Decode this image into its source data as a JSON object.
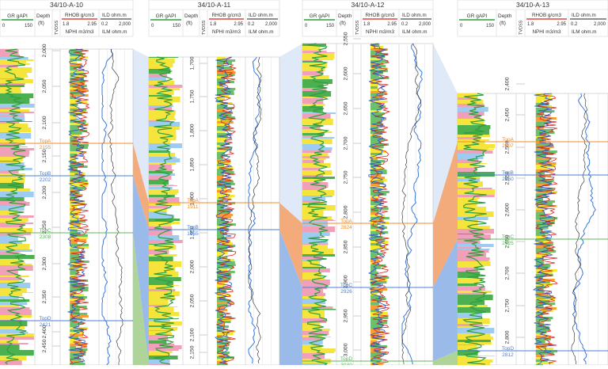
{
  "colors": {
    "gr": "#2e9e3e",
    "rhob": "#d9201a",
    "nphi": "#2756c8",
    "ild": "#202020",
    "ilm": "#3a78d8",
    "fill_sand": "#f4e61c",
    "fill_shale": "#5cb85c",
    "fill_porous": "#f7931e",
    "lith_yellow": "#f5e43c",
    "lith_pink": "#f0a0b8",
    "lith_blue": "#9ecbf0",
    "lith_green": "#4caf50",
    "top_orange": "#f28c28",
    "top_blue": "#4a7fd4",
    "top_green": "#5cb85c"
  },
  "header_labels": {
    "gr": "GR gAPI",
    "depth": "Depth",
    "depth_unit": "(ft)",
    "tvds": "TVDSS",
    "rhob": "RHOB g/cm3",
    "nphi": "NPHI m3/m3",
    "ild": "ILD ohm.m",
    "ilm": "ILM ohm.m",
    "gr_min": "0",
    "gr_max": "150",
    "rhob_min": "1.8",
    "rhob_max": "2.95",
    "res_min": "0.2",
    "res_max": "2,000"
  },
  "wells": [
    {
      "name": "34/10-A-10",
      "depth_ticks": [
        "2,000",
        "2,050",
        "2,100",
        "2,150",
        "2,200",
        "2,250",
        "2,300",
        "2,350",
        "2,400",
        "2,450"
      ],
      "tops": [
        {
          "label": "TopA",
          "value": "2155",
          "kind": "orange"
        },
        {
          "label": "TopB",
          "value": "2202",
          "kind": "blue"
        },
        {
          "label": "TopC",
          "value": "2308",
          "kind": "green"
        },
        {
          "label": "TopD",
          "value": "2421",
          "kind": "blue"
        }
      ]
    },
    {
      "name": "34/10-A-11",
      "depth_ticks": [
        "1,700",
        "1,750",
        "1,800",
        "1,850",
        "1,900",
        "1,950",
        "2,000",
        "2,050",
        "2,100",
        "2,150"
      ],
      "tops": [
        {
          "label": "TopA",
          "value": "1911",
          "kind": "orange"
        },
        {
          "label": "TopB",
          "value": "1955",
          "kind": "blue"
        }
      ]
    },
    {
      "name": "34/10-A-12",
      "depth_ticks": [
        "2,550",
        "2,600",
        "2,650",
        "2,700",
        "2,750",
        "2,800",
        "2,850",
        "2,900",
        "2,950",
        "3,000"
      ],
      "tops": [
        {
          "label": "TopA",
          "value": "2824",
          "kind": "orange"
        },
        {
          "label": "TopC",
          "value": "2926",
          "kind": "blue"
        },
        {
          "label": "TopD",
          "value": "3030",
          "kind": "green"
        }
      ]
    },
    {
      "name": "34/10-A-13",
      "depth_ticks": [
        "2,400",
        "2,450",
        "2,500",
        "2,550",
        "2,600",
        "2,650",
        "2,700",
        "2,750",
        "2,800"
      ],
      "tops": [
        {
          "label": "TopA",
          "value": "2507",
          "kind": "orange"
        },
        {
          "label": "TopB",
          "value": "2550",
          "kind": "blue"
        },
        {
          "label": "TopC",
          "value": "2625",
          "kind": "green"
        },
        {
          "label": "TopD",
          "value": "2812",
          "kind": "blue"
        }
      ]
    }
  ]
}
